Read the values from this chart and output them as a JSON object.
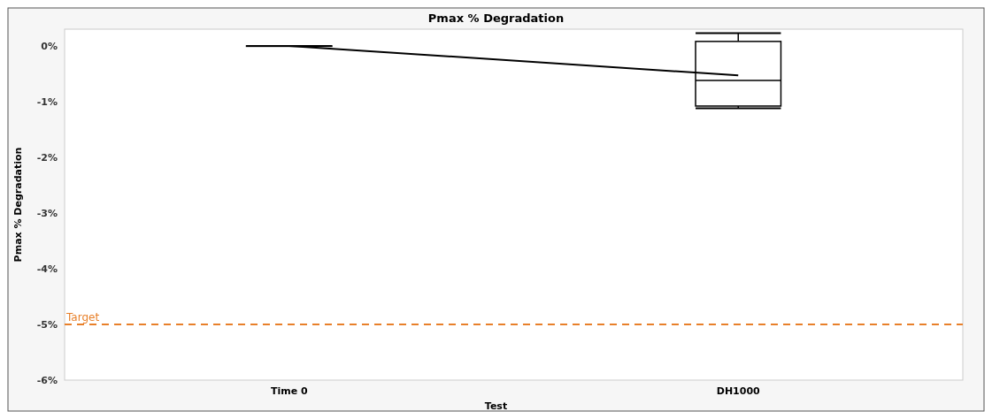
{
  "chart_data": {
    "type": "box",
    "title": "Pmax % Degradation",
    "xlabel": "Test",
    "ylabel": "Pmax % Degradation",
    "categories": [
      "Time 0",
      "DH1000"
    ],
    "series": [
      {
        "color": "#000000",
        "boxes": [
          {
            "low": 0,
            "q1": 0,
            "median": 0,
            "q3": 0,
            "high": 0
          },
          {
            "low": -1.12,
            "q1": -1.08,
            "median": -0.62,
            "q3": 0.08,
            "high": 0.23
          }
        ]
      },
      {
        "type": "line",
        "color": "#000000",
        "values": [
          0,
          -0.53
        ]
      }
    ],
    "ylim": [
      -6,
      0.3
    ],
    "yticks": [
      {
        "value": -6,
        "label": "-6%"
      },
      {
        "value": -5,
        "label": "-5%"
      },
      {
        "value": -4,
        "label": "-4%"
      },
      {
        "value": -3,
        "label": "-3%"
      },
      {
        "value": -2,
        "label": "-2%"
      },
      {
        "value": -1,
        "label": "-1%"
      },
      {
        "value": 0,
        "label": "0%"
      }
    ],
    "ref_lines": [
      {
        "axis": "y",
        "value": -5,
        "label": "Target",
        "color": "#e8802a",
        "line_style": "dashed"
      }
    ],
    "grid": false,
    "marker": "none"
  }
}
